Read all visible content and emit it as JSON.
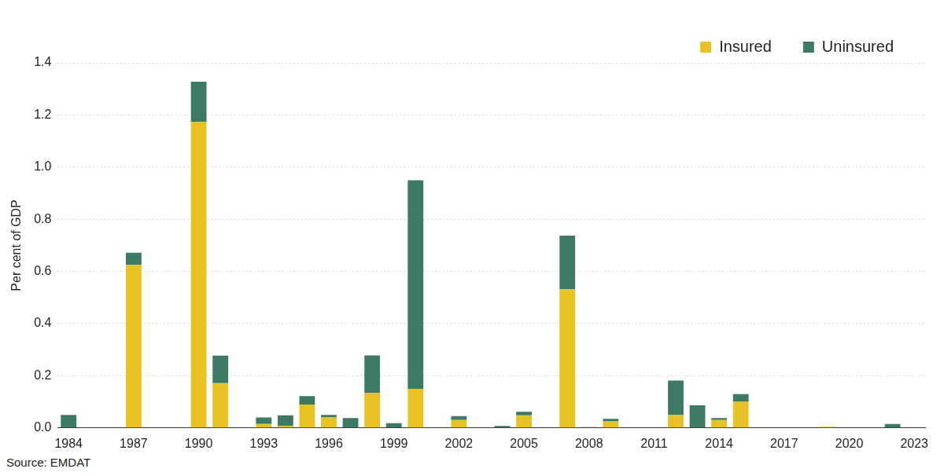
{
  "chart_data": {
    "type": "bar",
    "stacked": true,
    "y_label": "Per cent of GDP",
    "source": "Source: EMDAT",
    "categories": [
      "1984",
      null,
      null,
      "1987",
      null,
      null,
      "1990",
      null,
      null,
      "1993",
      null,
      null,
      "1996",
      null,
      null,
      "1999",
      null,
      null,
      "2002",
      null,
      null,
      "2005",
      null,
      null,
      "2008",
      null,
      null,
      "2011",
      null,
      null,
      "2014",
      null,
      null,
      "2017",
      null,
      null,
      "2020",
      null,
      null,
      "2023"
    ],
    "series": [
      {
        "name": "Insured",
        "color": "#e8c124",
        "values": [
          0,
          0,
          0,
          0.625,
          0,
          0,
          1.173,
          0.172,
          0,
          0.015,
          0.008,
          0.09,
          0.04,
          0,
          0.135,
          0,
          0.15,
          0,
          0.03,
          0,
          0,
          0.048,
          0,
          0.532,
          0,
          0.025,
          0,
          0,
          0.05,
          0,
          0.03,
          0.1,
          0,
          0,
          0,
          0.005,
          0,
          0,
          0,
          0
        ]
      },
      {
        "name": "Uninsured",
        "color": "#3d7a64",
        "values": [
          0.05,
          0,
          0,
          0.047,
          0,
          0,
          0.155,
          0.105,
          0,
          0.025,
          0.04,
          0.032,
          0.01,
          0.038,
          0.143,
          0.018,
          0.8,
          0,
          0.015,
          0,
          0.008,
          0.014,
          0,
          0.205,
          0.003,
          0.01,
          0,
          0,
          0.132,
          0.087,
          0.008,
          0.03,
          0,
          0,
          0,
          0,
          0,
          0,
          0.015,
          0
        ]
      }
    ],
    "ylim": [
      0,
      1.4
    ],
    "yticks": [
      {
        "value": 0,
        "label": "0.0"
      },
      0.2,
      0.4,
      0.6,
      0.8,
      {
        "value": 1,
        "label": "1.0"
      },
      1.2,
      1.4
    ],
    "grid": true,
    "legend": "top-right"
  }
}
